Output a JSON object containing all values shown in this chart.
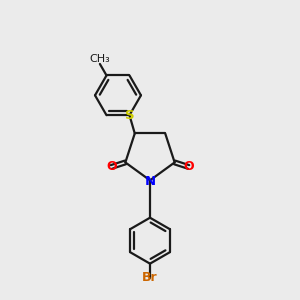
{
  "background_color": "#ebebeb",
  "line_color": "#1a1a1a",
  "N_color": "#0000ff",
  "O_color": "#ff0000",
  "S_color": "#cccc00",
  "Br_color": "#cc6600",
  "line_width": 1.6,
  "figsize": [
    3.0,
    3.0
  ],
  "dpi": 100,
  "xlim": [
    0,
    10
  ],
  "ylim": [
    0,
    10
  ]
}
